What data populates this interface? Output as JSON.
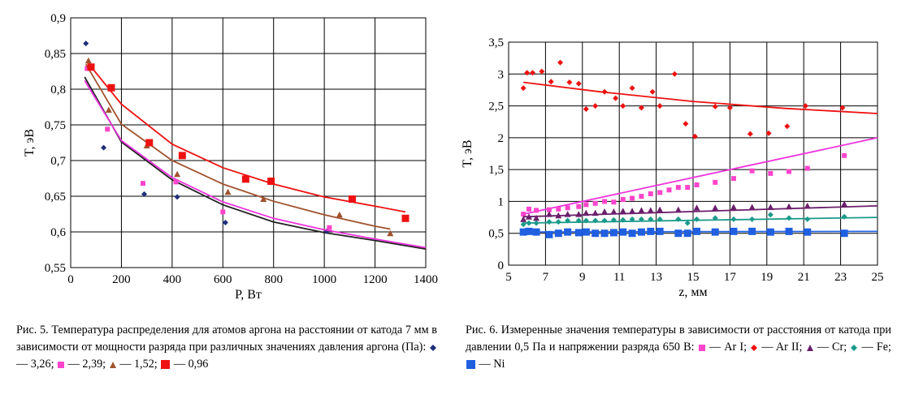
{
  "figure5": {
    "caption": {
      "text": "Рис. 5. Температура распределения для атомов аргона на расстоянии от катода 7 мм в зависимости от мощности разряда при различных значениях давления аргона (Па):",
      "legend": [
        {
          "marker": "diamond",
          "color": "#1f2f7a",
          "label": "— 3,26;"
        },
        {
          "marker": "square",
          "color": "#ff44cc",
          "label": "—"
        },
        {
          "marker": "",
          "color": "",
          "label": "2,39;"
        },
        {
          "marker": "triangle",
          "color": "#a0522d",
          "label": "— 1,52;"
        },
        {
          "marker": "square-big",
          "color": "#ee1111",
          "label": "— 0,96"
        }
      ]
    }
  },
  "figure6": {
    "caption": {
      "text": "Рис. 6. Измеренные значения температуры в зависимости от расстояния от катода при давлении 0,5 Па и напряжении разряда 650 В:",
      "legend": [
        {
          "marker": "square",
          "color": "#ff44cc",
          "label": "— Ar I;"
        },
        {
          "marker": "diamond",
          "color": "#ee1111",
          "label": "— Ar II;"
        },
        {
          "marker": "triangle",
          "color": "#6b1f6b",
          "label": "— Cr;"
        },
        {
          "marker": "diamond",
          "color": "#1a9a8a",
          "label": "— Fe;"
        },
        {
          "marker": "square-big",
          "color": "#1f5fe0",
          "label": "— Ni"
        }
      ]
    }
  },
  "chart_data": [
    {
      "type": "scatter",
      "xlabel": "P, Вт",
      "ylabel": "T, эВ",
      "xlim": [
        0,
        1400
      ],
      "ylim": [
        0.55,
        0.9
      ],
      "x_ticks": [
        "0",
        "200",
        "400",
        "600",
        "800",
        "1000",
        "1200",
        "1400"
      ],
      "y_ticks": [
        "0,55",
        "0,6",
        "0,65",
        "0,7",
        "0,75",
        "0,8",
        "0,85",
        "0,9"
      ],
      "grid": true,
      "series": [
        {
          "name": "3,26",
          "marker": "diamond",
          "color": "#1f2f7a",
          "points": [
            [
              60,
              0.864
            ],
            [
              130,
              0.718
            ],
            [
              290,
              0.653
            ],
            [
              420,
              0.649
            ],
            [
              610,
              0.613
            ],
            [
              1010,
              0.601
            ]
          ],
          "fit": [
            [
              55,
              0.817
            ],
            [
              200,
              0.726
            ],
            [
              400,
              0.673
            ],
            [
              600,
              0.638
            ],
            [
              800,
              0.614
            ],
            [
              1000,
              0.599
            ],
            [
              1200,
              0.588
            ],
            [
              1400,
              0.576
            ]
          ],
          "fit_color": "#222222"
        },
        {
          "name": "2,39",
          "marker": "square",
          "color": "#ff44cc",
          "points": [
            [
              65,
              0.829
            ],
            [
              145,
              0.744
            ],
            [
              285,
              0.668
            ],
            [
              415,
              0.67
            ],
            [
              600,
              0.628
            ],
            [
              1020,
              0.606
            ]
          ],
          "fit": [
            [
              55,
              0.812
            ],
            [
              200,
              0.728
            ],
            [
              400,
              0.676
            ],
            [
              600,
              0.642
            ],
            [
              800,
              0.619
            ],
            [
              1000,
              0.603
            ],
            [
              1200,
              0.59
            ],
            [
              1400,
              0.578
            ]
          ],
          "fit_color": "#ee33dd"
        },
        {
          "name": "1,52",
          "marker": "triangle",
          "color": "#a0522d",
          "points": [
            [
              70,
              0.84
            ],
            [
              150,
              0.771
            ],
            [
              300,
              0.721
            ],
            [
              420,
              0.681
            ],
            [
              620,
              0.656
            ],
            [
              760,
              0.646
            ],
            [
              1060,
              0.624
            ],
            [
              1260,
              0.598
            ]
          ],
          "fit": [
            [
              60,
              0.835
            ],
            [
              200,
              0.751
            ],
            [
              400,
              0.7
            ],
            [
              600,
              0.667
            ],
            [
              800,
              0.643
            ],
            [
              1000,
              0.624
            ],
            [
              1200,
              0.608
            ],
            [
              1260,
              0.604
            ]
          ],
          "fit_color": "#a0522d"
        },
        {
          "name": "0,96",
          "marker": "square-big",
          "color": "#ee1111",
          "points": [
            [
              80,
              0.831
            ],
            [
              160,
              0.802
            ],
            [
              310,
              0.725
            ],
            [
              440,
              0.707
            ],
            [
              690,
              0.674
            ],
            [
              790,
              0.671
            ],
            [
              1110,
              0.646
            ],
            [
              1320,
              0.619
            ]
          ],
          "fit": [
            [
              70,
              0.836
            ],
            [
              200,
              0.779
            ],
            [
              400,
              0.723
            ],
            [
              600,
              0.69
            ],
            [
              800,
              0.667
            ],
            [
              1000,
              0.649
            ],
            [
              1200,
              0.636
            ],
            [
              1320,
              0.628
            ]
          ],
          "fit_color": "#ee1111"
        }
      ]
    },
    {
      "type": "scatter",
      "xlabel": "z, мм",
      "ylabel": "T, эВ",
      "xlim": [
        5,
        25
      ],
      "ylim": [
        0,
        3.5
      ],
      "x_ticks": [
        "5",
        "7",
        "9",
        "11",
        "13",
        "15",
        "17",
        "19",
        "21",
        "23",
        "25"
      ],
      "y_ticks": [
        "0",
        "0,5",
        "1",
        "1,5",
        "2",
        "2,5",
        "3",
        "3,5"
      ],
      "grid": true,
      "series": [
        {
          "name": "Ar I",
          "marker": "square",
          "color": "#ff44cc",
          "points": [
            [
              5.8,
              0.8
            ],
            [
              6.1,
              0.88
            ],
            [
              6.5,
              0.86
            ],
            [
              7.2,
              0.87
            ],
            [
              7.7,
              0.88
            ],
            [
              8.2,
              0.9
            ],
            [
              8.8,
              0.92
            ],
            [
              9.2,
              0.95
            ],
            [
              9.7,
              0.97
            ],
            [
              10.2,
              1.0
            ],
            [
              10.7,
              0.99
            ],
            [
              11.2,
              1.03
            ],
            [
              11.7,
              1.05
            ],
            [
              12.2,
              1.08
            ],
            [
              12.7,
              1.12
            ],
            [
              13.2,
              1.14
            ],
            [
              13.7,
              1.18
            ],
            [
              14.2,
              1.22
            ],
            [
              14.7,
              1.22
            ],
            [
              15.2,
              1.26
            ],
            [
              16.2,
              1.3
            ],
            [
              17.2,
              1.36
            ],
            [
              18.2,
              1.48
            ],
            [
              19.2,
              1.44
            ],
            [
              20.2,
              1.47
            ],
            [
              21.2,
              1.52
            ],
            [
              23.2,
              1.72
            ]
          ],
          "fit": [
            [
              5.8,
              0.8
            ],
            [
              25,
              2.0
            ]
          ],
          "fit_color": "#ee33dd"
        },
        {
          "name": "Ar II",
          "marker": "diamond",
          "color": "#ee1111",
          "points": [
            [
              5.8,
              2.78
            ],
            [
              6.0,
              3.02
            ],
            [
              6.3,
              3.02
            ],
            [
              6.8,
              3.04
            ],
            [
              7.3,
              2.88
            ],
            [
              7.8,
              3.18
            ],
            [
              8.3,
              2.87
            ],
            [
              8.8,
              2.85
            ],
            [
              9.2,
              2.45
            ],
            [
              9.7,
              2.5
            ],
            [
              10.2,
              2.72
            ],
            [
              10.8,
              2.62
            ],
            [
              11.2,
              2.5
            ],
            [
              11.7,
              2.78
            ],
            [
              12.2,
              2.47
            ],
            [
              12.8,
              2.72
            ],
            [
              13.2,
              2.5
            ],
            [
              14.0,
              3.0
            ],
            [
              14.6,
              2.22
            ],
            [
              15.1,
              2.02
            ],
            [
              16.2,
              2.49
            ],
            [
              17.0,
              2.47
            ],
            [
              18.1,
              2.06
            ],
            [
              19.1,
              2.07
            ],
            [
              20.1,
              2.18
            ],
            [
              21.1,
              2.5
            ],
            [
              23.1,
              2.47
            ]
          ],
          "fit": [
            [
              5.8,
              2.87
            ],
            [
              10,
              2.72
            ],
            [
              15,
              2.57
            ],
            [
              20,
              2.46
            ],
            [
              25,
              2.38
            ]
          ],
          "fit_color": "#ee1111"
        },
        {
          "name": "Cr",
          "marker": "triangle",
          "color": "#6b1f6b",
          "points": [
            [
              5.8,
              0.72
            ],
            [
              6.1,
              0.76
            ],
            [
              6.5,
              0.74
            ],
            [
              7.2,
              0.8
            ],
            [
              7.7,
              0.78
            ],
            [
              8.2,
              0.8
            ],
            [
              8.8,
              0.8
            ],
            [
              9.2,
              0.82
            ],
            [
              9.7,
              0.82
            ],
            [
              10.2,
              0.84
            ],
            [
              10.7,
              0.84
            ],
            [
              11.2,
              0.85
            ],
            [
              11.7,
              0.85
            ],
            [
              12.2,
              0.86
            ],
            [
              12.7,
              0.86
            ],
            [
              13.2,
              0.87
            ],
            [
              14.2,
              0.87
            ],
            [
              15.2,
              0.9
            ],
            [
              16.2,
              0.9
            ],
            [
              17.2,
              0.91
            ],
            [
              18.2,
              0.91
            ],
            [
              19.2,
              0.91
            ],
            [
              20.2,
              0.92
            ],
            [
              21.2,
              0.93
            ],
            [
              23.2,
              0.96
            ]
          ],
          "fit": [
            [
              5.8,
              0.76
            ],
            [
              25,
              0.93
            ]
          ],
          "fit_color": "#6b1f6b"
        },
        {
          "name": "Fe",
          "marker": "diamond",
          "color": "#1a9a8a",
          "points": [
            [
              5.8,
              0.64
            ],
            [
              6.1,
              0.66
            ],
            [
              6.5,
              0.66
            ],
            [
              7.2,
              0.68
            ],
            [
              7.7,
              0.68
            ],
            [
              8.2,
              0.7
            ],
            [
              8.8,
              0.7
            ],
            [
              9.2,
              0.7
            ],
            [
              9.7,
              0.7
            ],
            [
              10.2,
              0.7
            ],
            [
              10.7,
              0.71
            ],
            [
              11.2,
              0.71
            ],
            [
              11.7,
              0.72
            ],
            [
              12.2,
              0.72
            ],
            [
              12.7,
              0.72
            ],
            [
              13.2,
              0.72
            ],
            [
              14.2,
              0.72
            ],
            [
              14.7,
              0.66
            ],
            [
              15.2,
              0.72
            ],
            [
              16.2,
              0.74
            ],
            [
              17.2,
              0.72
            ],
            [
              18.2,
              0.72
            ],
            [
              19.2,
              0.79
            ],
            [
              20.2,
              0.74
            ],
            [
              21.2,
              0.72
            ],
            [
              23.2,
              0.76
            ]
          ],
          "fit": [
            [
              5.8,
              0.66
            ],
            [
              25,
              0.75
            ]
          ],
          "fit_color": "#1a9a8a"
        },
        {
          "name": "Ni",
          "marker": "square-big",
          "color": "#1f5fe0",
          "points": [
            [
              5.8,
              0.52
            ],
            [
              6.1,
              0.53
            ],
            [
              6.5,
              0.52
            ],
            [
              7.2,
              0.48
            ],
            [
              7.7,
              0.5
            ],
            [
              8.2,
              0.52
            ],
            [
              8.8,
              0.51
            ],
            [
              9.2,
              0.52
            ],
            [
              9.7,
              0.5
            ],
            [
              10.2,
              0.5
            ],
            [
              10.7,
              0.51
            ],
            [
              11.2,
              0.52
            ],
            [
              11.7,
              0.5
            ],
            [
              12.2,
              0.52
            ],
            [
              12.7,
              0.53
            ],
            [
              13.2,
              0.53
            ],
            [
              14.2,
              0.5
            ],
            [
              14.7,
              0.5
            ],
            [
              15.2,
              0.53
            ],
            [
              16.2,
              0.52
            ],
            [
              17.2,
              0.53
            ],
            [
              18.2,
              0.53
            ],
            [
              19.2,
              0.52
            ],
            [
              20.2,
              0.53
            ],
            [
              21.2,
              0.52
            ],
            [
              23.2,
              0.5
            ]
          ],
          "fit": [
            [
              5.8,
              0.52
            ],
            [
              25,
              0.53
            ]
          ],
          "fit_color": "#1f5fe0"
        }
      ]
    }
  ]
}
